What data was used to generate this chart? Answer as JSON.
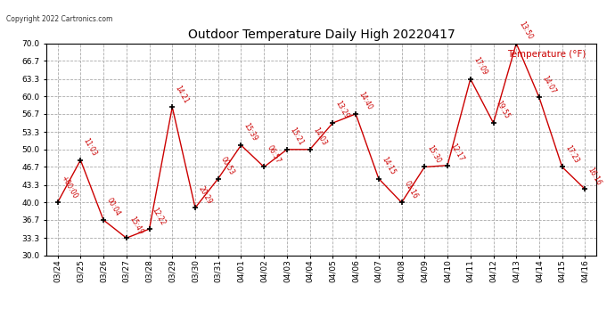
{
  "title": "Outdoor Temperature Daily High 20220417",
  "copyright": "Copyright 2022 Cartronics.com",
  "legend_label": "Temperature (°F)",
  "dates": [
    "03/24",
    "03/25",
    "03/26",
    "03/27",
    "03/28",
    "03/29",
    "03/30",
    "03/31",
    "04/01",
    "04/02",
    "04/03",
    "04/04",
    "04/05",
    "04/06",
    "04/07",
    "04/08",
    "04/09",
    "04/10",
    "04/11",
    "04/12",
    "04/13",
    "04/14",
    "04/15",
    "04/16"
  ],
  "values": [
    40.0,
    48.0,
    36.7,
    33.3,
    35.0,
    58.0,
    39.0,
    44.5,
    50.8,
    46.7,
    50.0,
    50.0,
    55.0,
    56.7,
    44.5,
    40.0,
    46.7,
    47.0,
    63.3,
    55.0,
    70.0,
    59.8,
    46.7,
    42.5
  ],
  "time_labels": [
    "+00:00",
    "11:03",
    "00:04",
    "15:49",
    "12:22",
    "14:21",
    "20:29",
    "00:53",
    "15:39",
    "06:57",
    "15:21",
    "14:03",
    "13:29",
    "14:40",
    "14:15",
    "01:16",
    "15:30",
    "12:17",
    "17:09",
    "19:55",
    "13:50",
    "14:07",
    "17:23",
    "16:16"
  ],
  "line_color": "#cc0000",
  "marker_color": "#000000",
  "bg_color": "#ffffff",
  "grid_color": "#aaaaaa",
  "ylim_min": 30.0,
  "ylim_max": 70.0,
  "yticks": [
    30.0,
    33.3,
    36.7,
    40.0,
    43.3,
    46.7,
    50.0,
    53.3,
    56.7,
    60.0,
    63.3,
    66.7,
    70.0
  ]
}
